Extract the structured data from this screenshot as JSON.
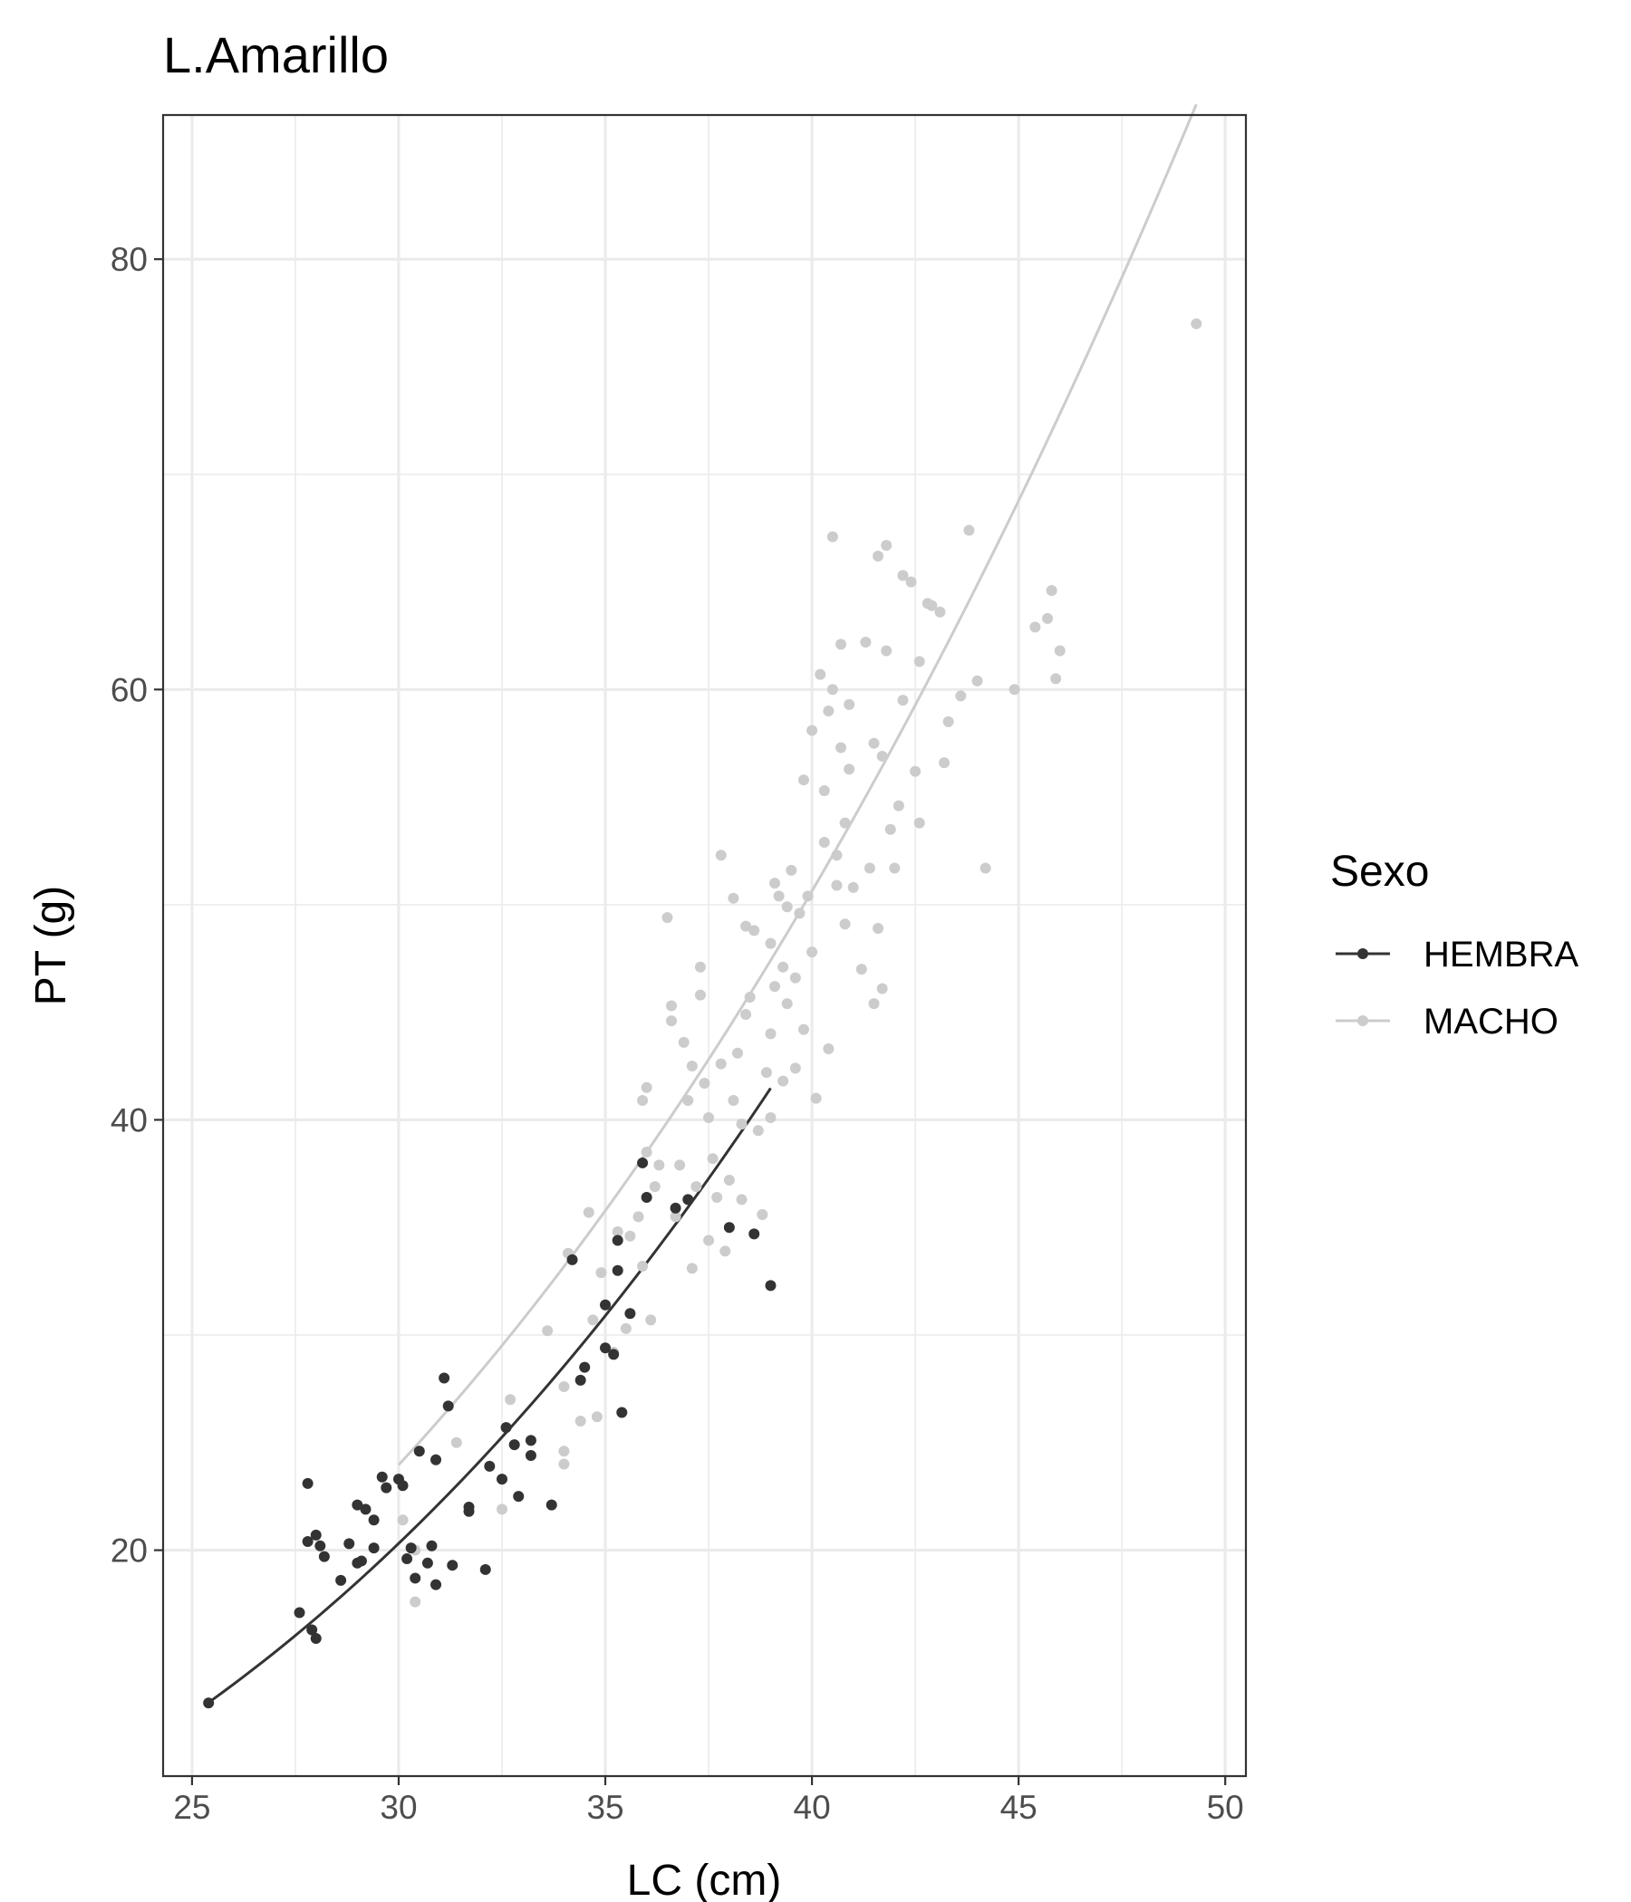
{
  "chart_data": {
    "type": "scatter",
    "title": "L.Amarillo",
    "xlabel": "LC (cm)",
    "ylabel": "PT (g)",
    "xlim": [
      24.3,
      50.5
    ],
    "ylim": [
      9.5,
      86.7
    ],
    "x_ticks": [
      25,
      30,
      35,
      40,
      45,
      50
    ],
    "x_tick_labels": [
      "25",
      "30",
      "35",
      "40",
      "45",
      "50"
    ],
    "y_ticks": [
      20,
      40,
      60,
      80
    ],
    "y_tick_labels": [
      "20",
      "40",
      "60",
      "80"
    ],
    "grid": true,
    "legend": {
      "title": "Sexo",
      "position": "right",
      "entries": [
        "HEMBRA",
        "MACHO"
      ]
    },
    "series": [
      {
        "name": "HEMBRA",
        "color": "#333333",
        "fit": {
          "x_range": [
            25.4,
            39.0
          ],
          "a": 0.00195,
          "b": 2.72
        },
        "points": [
          [
            25.4,
            12.9
          ],
          [
            27.6,
            17.1
          ],
          [
            27.8,
            23.1
          ],
          [
            27.8,
            20.4
          ],
          [
            27.9,
            16.3
          ],
          [
            28.0,
            15.9
          ],
          [
            28.0,
            20.7
          ],
          [
            28.1,
            20.2
          ],
          [
            28.2,
            19.7
          ],
          [
            28.6,
            18.6
          ],
          [
            28.8,
            20.3
          ],
          [
            29.0,
            22.1
          ],
          [
            29.0,
            19.4
          ],
          [
            29.1,
            19.5
          ],
          [
            29.2,
            21.9
          ],
          [
            29.4,
            21.4
          ],
          [
            29.4,
            20.1
          ],
          [
            29.6,
            23.4
          ],
          [
            29.7,
            22.9
          ],
          [
            30.0,
            23.3
          ],
          [
            30.1,
            23.0
          ],
          [
            30.2,
            19.6
          ],
          [
            30.3,
            20.1
          ],
          [
            30.4,
            18.7
          ],
          [
            30.5,
            24.6
          ],
          [
            30.7,
            19.4
          ],
          [
            30.8,
            20.2
          ],
          [
            30.9,
            18.4
          ],
          [
            30.9,
            24.2
          ],
          [
            31.1,
            28.0
          ],
          [
            31.2,
            26.7
          ],
          [
            31.3,
            19.3
          ],
          [
            31.7,
            22.0
          ],
          [
            31.7,
            21.8
          ],
          [
            32.1,
            19.1
          ],
          [
            32.2,
            23.9
          ],
          [
            32.5,
            23.3
          ],
          [
            32.6,
            25.7
          ],
          [
            32.8,
            24.9
          ],
          [
            32.9,
            22.5
          ],
          [
            33.2,
            25.1
          ],
          [
            33.2,
            24.4
          ],
          [
            33.7,
            22.1
          ],
          [
            34.2,
            33.5
          ],
          [
            34.4,
            27.9
          ],
          [
            34.5,
            28.5
          ],
          [
            35.0,
            29.4
          ],
          [
            35.0,
            31.4
          ],
          [
            35.2,
            29.1
          ],
          [
            35.3,
            34.4
          ],
          [
            35.3,
            33.0
          ],
          [
            35.4,
            26.4
          ],
          [
            35.6,
            31.0
          ],
          [
            35.9,
            38.0
          ],
          [
            36.0,
            36.4
          ],
          [
            36.7,
            35.9
          ],
          [
            37.0,
            36.3
          ],
          [
            38.0,
            35.0
          ],
          [
            38.6,
            34.7
          ],
          [
            39.0,
            32.3
          ]
        ]
      },
      {
        "name": "MACHO",
        "color": "#cccccc",
        "fit": {
          "x_range": [
            30.0,
            49.3
          ],
          "a": 0.00346,
          "b": 2.6
        },
        "points": [
          [
            30.1,
            21.4
          ],
          [
            30.4,
            17.6
          ],
          [
            30.4,
            20.0
          ],
          [
            31.4,
            25.0
          ],
          [
            32.5,
            21.9
          ],
          [
            32.7,
            27.0
          ],
          [
            33.6,
            30.2
          ],
          [
            34.0,
            27.6
          ],
          [
            34.0,
            24.6
          ],
          [
            34.0,
            24.0
          ],
          [
            34.1,
            33.8
          ],
          [
            34.4,
            26.0
          ],
          [
            34.6,
            35.7
          ],
          [
            34.7,
            30.7
          ],
          [
            34.8,
            26.2
          ],
          [
            34.9,
            32.9
          ],
          [
            35.2,
            29.2
          ],
          [
            35.3,
            34.8
          ],
          [
            35.5,
            30.3
          ],
          [
            35.6,
            34.6
          ],
          [
            35.8,
            35.5
          ],
          [
            35.9,
            33.2
          ],
          [
            35.9,
            40.9
          ],
          [
            36.0,
            41.5
          ],
          [
            36.0,
            38.5
          ],
          [
            36.1,
            30.7
          ],
          [
            36.2,
            36.9
          ],
          [
            36.3,
            37.9
          ],
          [
            36.5,
            49.4
          ],
          [
            36.6,
            45.3
          ],
          [
            36.6,
            44.6
          ],
          [
            36.7,
            35.5
          ],
          [
            36.8,
            37.9
          ],
          [
            36.9,
            43.6
          ],
          [
            37.0,
            40.9
          ],
          [
            37.1,
            42.5
          ],
          [
            37.1,
            33.1
          ],
          [
            37.2,
            36.9
          ],
          [
            37.3,
            45.8
          ],
          [
            37.3,
            47.1
          ],
          [
            37.4,
            41.7
          ],
          [
            37.5,
            40.1
          ],
          [
            37.5,
            34.4
          ],
          [
            37.6,
            38.2
          ],
          [
            37.7,
            36.4
          ],
          [
            37.8,
            52.3
          ],
          [
            37.8,
            42.6
          ],
          [
            37.9,
            33.9
          ],
          [
            38.0,
            37.2
          ],
          [
            38.1,
            50.3
          ],
          [
            38.1,
            40.9
          ],
          [
            38.2,
            43.1
          ],
          [
            38.3,
            36.3
          ],
          [
            38.3,
            39.8
          ],
          [
            38.4,
            44.9
          ],
          [
            38.4,
            49.0
          ],
          [
            38.5,
            45.7
          ],
          [
            38.6,
            48.8
          ],
          [
            38.7,
            39.5
          ],
          [
            38.8,
            35.6
          ],
          [
            38.9,
            42.2
          ],
          [
            39.0,
            48.2
          ],
          [
            39.0,
            40.1
          ],
          [
            39.0,
            44.0
          ],
          [
            39.1,
            51.0
          ],
          [
            39.1,
            46.2
          ],
          [
            39.2,
            50.4
          ],
          [
            39.3,
            47.1
          ],
          [
            39.3,
            41.8
          ],
          [
            39.4,
            45.4
          ],
          [
            39.4,
            49.9
          ],
          [
            39.5,
            51.6
          ],
          [
            39.6,
            46.6
          ],
          [
            39.6,
            42.4
          ],
          [
            39.7,
            49.6
          ],
          [
            39.8,
            55.8
          ],
          [
            39.8,
            44.2
          ],
          [
            39.9,
            50.4
          ],
          [
            40.0,
            58.1
          ],
          [
            40.0,
            47.8
          ],
          [
            40.1,
            41.0
          ],
          [
            40.2,
            60.7
          ],
          [
            40.3,
            55.3
          ],
          [
            40.3,
            52.9
          ],
          [
            40.4,
            59.0
          ],
          [
            40.4,
            43.3
          ],
          [
            40.5,
            67.1
          ],
          [
            40.5,
            60.0
          ],
          [
            40.6,
            52.3
          ],
          [
            40.6,
            50.9
          ],
          [
            40.7,
            62.1
          ],
          [
            40.7,
            57.3
          ],
          [
            40.8,
            53.8
          ],
          [
            40.8,
            49.1
          ],
          [
            40.9,
            59.3
          ],
          [
            40.9,
            56.3
          ],
          [
            41.0,
            50.8
          ],
          [
            41.2,
            47.0
          ],
          [
            41.3,
            62.2
          ],
          [
            41.4,
            51.7
          ],
          [
            41.5,
            57.5
          ],
          [
            41.5,
            45.4
          ],
          [
            41.6,
            66.2
          ],
          [
            41.6,
            48.9
          ],
          [
            41.7,
            56.9
          ],
          [
            41.7,
            46.1
          ],
          [
            41.8,
            61.8
          ],
          [
            41.8,
            66.7
          ],
          [
            41.9,
            53.5
          ],
          [
            42.0,
            51.7
          ],
          [
            42.1,
            54.6
          ],
          [
            42.2,
            59.5
          ],
          [
            42.2,
            65.3
          ],
          [
            42.4,
            65.0
          ],
          [
            42.5,
            56.2
          ],
          [
            42.6,
            61.3
          ],
          [
            42.6,
            53.8
          ],
          [
            42.8,
            64.0
          ],
          [
            42.9,
            63.9
          ],
          [
            43.1,
            63.6
          ],
          [
            43.2,
            56.6
          ],
          [
            43.3,
            58.5
          ],
          [
            43.6,
            59.7
          ],
          [
            43.8,
            67.4
          ],
          [
            44.0,
            60.4
          ],
          [
            44.2,
            51.7
          ],
          [
            44.9,
            60.0
          ],
          [
            45.4,
            62.9
          ],
          [
            45.7,
            63.3
          ],
          [
            45.8,
            64.6
          ],
          [
            45.9,
            60.5
          ],
          [
            46.0,
            61.8
          ],
          [
            49.3,
            77.0
          ]
        ]
      }
    ]
  }
}
